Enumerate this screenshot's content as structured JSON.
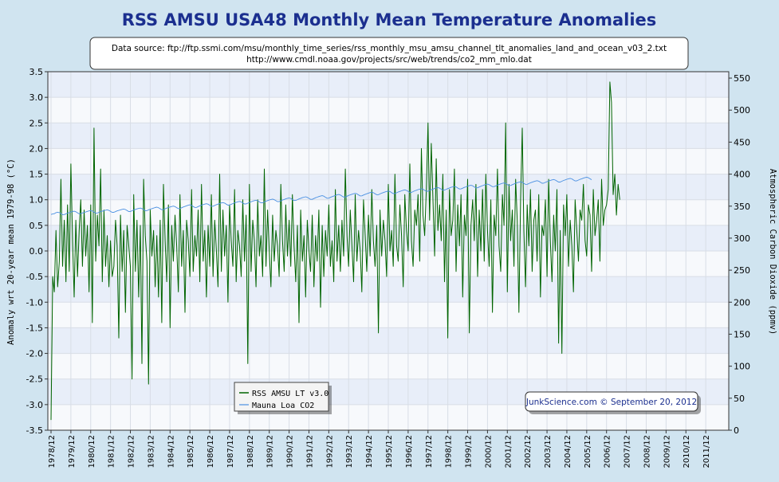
{
  "chart_data": {
    "type": "line",
    "title": "RSS AMSU USA48 Monthly Mean Temperature Anomalies",
    "source_lines": [
      "Data source: ftp://ftp.ssmi.com/msu/monthly_time_series/rss_monthly_msu_amsu_channel_tlt_anomalies_land_and_ocean_v03_2.txt",
      "http://www.cmdl.noaa.gov/projects/src/web/trends/co2_mm_mlo.dat"
    ],
    "ylabel": "Anomaly wrt 20-year mean 1979-98 (°C)",
    "y2label": "Atmospheric Carbon Dioxide (ppmv)",
    "ylim": [
      -3.5,
      3.5
    ],
    "y2lim": [
      0,
      560
    ],
    "yticks": [
      "3.5",
      "3.0",
      "2.5",
      "2.0",
      "1.5",
      "1.0",
      "0.5",
      "0.0",
      "-0.5",
      "-1.0",
      "-1.5",
      "-2.0",
      "-2.5",
      "-3.0",
      "-3.5"
    ],
    "y2ticks": [
      "550",
      "500",
      "450",
      "400",
      "350",
      "300",
      "250",
      "200",
      "150",
      "100",
      "50",
      "0"
    ],
    "xticks": [
      "1978/12",
      "1979/12",
      "1980/12",
      "1981/12",
      "1982/12",
      "1983/12",
      "1984/12",
      "1985/12",
      "1986/12",
      "1987/12",
      "1988/12",
      "1989/12",
      "1990/12",
      "1991/12",
      "1992/12",
      "1993/12",
      "1994/12",
      "1995/12",
      "1996/12",
      "1997/12",
      "1998/12",
      "1999/12",
      "2000/12",
      "2001/12",
      "2002/12",
      "2003/12",
      "2004/12",
      "2005/12",
      "2006/12",
      "2007/12",
      "2008/12",
      "2009/12",
      "2010/12",
      "2011/12"
    ],
    "x_start": "1978/12",
    "legend_position": "bottom-left",
    "series": [
      {
        "name": "RSS AMSU LT v3.0",
        "axis": "left",
        "color": "#006400",
        "values": [
          -3.3,
          -0.5,
          -0.8,
          0.4,
          -0.7,
          -0.2,
          1.4,
          -0.3,
          0.6,
          -0.6,
          0.9,
          -0.4,
          1.7,
          0.2,
          -0.9,
          0.6,
          -0.5,
          0.4,
          1.0,
          -0.3,
          0.8,
          -0.1,
          0.5,
          -0.8,
          0.9,
          -1.4,
          2.4,
          -0.2,
          0.7,
          0.1,
          1.6,
          -0.6,
          0.8,
          -0.3,
          0.3,
          -0.7,
          0.2,
          -0.5,
          -0.3,
          0.6,
          0.1,
          -1.7,
          0.7,
          -0.4,
          0.4,
          -1.2,
          0.5,
          0.1,
          -0.3,
          -2.5,
          1.1,
          -0.4,
          0.6,
          -0.9,
          0.5,
          -2.2,
          1.4,
          0.3,
          -0.2,
          -2.6,
          0.8,
          -0.1,
          0.4,
          -0.7,
          0.3,
          -0.9,
          0.6,
          -1.4,
          1.3,
          0.2,
          -0.6,
          0.9,
          -1.5,
          0.5,
          -0.2,
          0.7,
          0.1,
          -0.8,
          1.1,
          -0.3,
          0.4,
          -1.2,
          0.6,
          0.2,
          -0.5,
          1.2,
          -0.4,
          0.3,
          -0.1,
          0.8,
          -0.6,
          1.3,
          -0.2,
          0.4,
          -0.9,
          0.5,
          -0.3,
          1.1,
          -0.5,
          0.6,
          0.0,
          -0.7,
          1.5,
          -0.4,
          0.8,
          -0.1,
          0.5,
          -1.0,
          0.9,
          0.2,
          -0.3,
          1.2,
          -0.6,
          0.4,
          0.1,
          -0.5,
          1.0,
          -0.2,
          0.7,
          -2.2,
          1.3,
          -0.4,
          0.6,
          0.2,
          -0.7,
          1.0,
          -0.1,
          0.3,
          -0.5,
          1.6,
          -0.3,
          0.8,
          0.0,
          -0.7,
          0.7,
          -0.2,
          0.4,
          0.1,
          -0.5,
          1.3,
          0.2,
          -0.4,
          0.9,
          -0.1,
          0.6,
          -0.3,
          1.1,
          0.1,
          -0.6,
          0.5,
          -1.4,
          0.8,
          -0.2,
          0.3,
          -0.9,
          0.6,
          0.0,
          -0.4,
          0.7,
          -0.7,
          0.3,
          -0.2,
          0.8,
          -1.1,
          0.5,
          -0.5,
          0.4,
          -0.1,
          0.9,
          -0.3,
          0.2,
          -0.6,
          1.2,
          -0.2,
          0.5,
          -0.4,
          0.6,
          -0.1,
          1.6,
          0.3,
          -0.3,
          0.8,
          0.1,
          -0.6,
          1.1,
          -0.2,
          0.4,
          0.0,
          -0.8,
          1.0,
          0.3,
          -0.4,
          0.7,
          -0.1,
          1.2,
          0.2,
          -0.3,
          0.5,
          -1.6,
          0.8,
          -0.1,
          0.6,
          0.2,
          -0.5,
          1.3,
          0.0,
          0.4,
          -0.3,
          1.5,
          0.1,
          -0.2,
          0.9,
          0.3,
          -0.7,
          1.1,
          0.4,
          0.0,
          1.7,
          0.2,
          -0.3,
          0.8,
          0.5,
          1.1,
          -0.2,
          2.0,
          0.7,
          0.3,
          1.2,
          2.5,
          0.6,
          2.1,
          1.0,
          -0.1,
          1.8,
          0.4,
          0.9,
          0.2,
          1.5,
          -0.6,
          0.8,
          -1.7,
          1.2,
          0.3,
          0.6,
          1.6,
          -0.4,
          0.9,
          0.1,
          1.1,
          -0.9,
          0.7,
          0.3,
          1.4,
          -1.6,
          0.5,
          1.0,
          0.2,
          1.3,
          -0.5,
          0.8,
          0.0,
          1.2,
          -0.2,
          1.5,
          0.4,
          -0.3,
          1.0,
          -1.2,
          0.7,
          0.3,
          1.6,
          0.1,
          -0.4,
          1.1,
          0.5,
          2.5,
          -0.8,
          1.3,
          0.2,
          0.8,
          -0.3,
          1.4,
          0.6,
          -1.2,
          1.0,
          2.4,
          0.4,
          -0.7,
          0.9,
          0.1,
          1.2,
          -0.4,
          0.6,
          0.8,
          -0.2,
          1.1,
          -0.9,
          0.5,
          0.3,
          1.0,
          -0.5,
          1.4,
          0.2,
          -0.6,
          0.7,
          0.0,
          1.2,
          -1.8,
          0.4,
          -2.0,
          0.9,
          0.3,
          1.1,
          -0.3,
          0.6,
          0.1,
          -0.8,
          1.0,
          0.4,
          -0.2,
          0.8,
          0.6,
          1.3,
          0.2,
          -0.1,
          0.9,
          0.7,
          -0.4,
          1.2,
          0.3,
          0.6,
          1.0,
          -0.2,
          1.4,
          0.5,
          0.8,
          0.9,
          1.2,
          3.3,
          2.9,
          1.1,
          1.5,
          0.7,
          1.3,
          1.0
        ]
      },
      {
        "name": "Mauna Loa CO2",
        "axis": "right",
        "color": "#4a90e2",
        "values": [
          337,
          337.8,
          338.2,
          339.8,
          340.5,
          339.9,
          338.6,
          336.8,
          336.9,
          338.0,
          339.2,
          339.8,
          340.9,
          341.6,
          342.1,
          341.2,
          339.6,
          338.1,
          338.2,
          339.3,
          340.2,
          340.9,
          341.8,
          342.6,
          343.1,
          342.3,
          340.6,
          339.2,
          339.2,
          340.4,
          341.5,
          342.2,
          342.9,
          343.7,
          344.2,
          343.4,
          341.8,
          340.2,
          340.3,
          341.5,
          342.6,
          343.3,
          344.2,
          345.0,
          345.5,
          344.7,
          343.1,
          341.6,
          341.7,
          342.9,
          344.0,
          344.8,
          345.7,
          346.4,
          347.0,
          346.2,
          344.5,
          343.0,
          343.0,
          344.2,
          345.3,
          346.1,
          347.0,
          347.8,
          348.4,
          347.6,
          345.9,
          344.5,
          344.6,
          345.8,
          347.0,
          347.8,
          348.7,
          349.5,
          350.1,
          349.3,
          347.6,
          346.1,
          346.3,
          347.5,
          348.7,
          349.6,
          350.6,
          351.4,
          352.0,
          351.2,
          349.5,
          348.0,
          348.1,
          349.3,
          350.5,
          351.4,
          352.4,
          353.2,
          353.8,
          353.0,
          351.3,
          349.8,
          349.9,
          351.1,
          352.3,
          353.2,
          354.2,
          355.0,
          355.6,
          354.8,
          353.1,
          351.6,
          351.7,
          352.9,
          354.1,
          355.0,
          356.0,
          356.8,
          357.4,
          356.6,
          354.9,
          353.4,
          353.5,
          354.7,
          355.9,
          356.8,
          357.8,
          358.6,
          359.2,
          358.4,
          356.7,
          355.2,
          355.3,
          356.5,
          357.7,
          358.6,
          359.6,
          360.4,
          361.0,
          360.2,
          358.5,
          357.0,
          357.1,
          358.3,
          359.5,
          360.4,
          361.4,
          362.2,
          362.8,
          362.0,
          360.3,
          358.8,
          358.9,
          360.1,
          361.3,
          362.2,
          363.2,
          364.0,
          364.6,
          363.8,
          362.1,
          360.6,
          360.7,
          361.9,
          363.1,
          364.0,
          365.0,
          365.8,
          366.4,
          365.6,
          363.9,
          362.4,
          362.5,
          363.7,
          364.9,
          365.8,
          366.8,
          367.6,
          368.2,
          367.4,
          365.7,
          364.2,
          364.3,
          365.5,
          366.7,
          367.6,
          368.6,
          369.4,
          370.0,
          369.2,
          367.5,
          366.0,
          366.1,
          367.3,
          368.5,
          369.4,
          370.4,
          371.2,
          371.8,
          371.0,
          369.3,
          367.8,
          367.9,
          369.1,
          370.3,
          371.2,
          372.2,
          373.0,
          373.6,
          372.8,
          371.1,
          369.6,
          369.7,
          370.9,
          372.1,
          373.0,
          374.0,
          374.8,
          375.4,
          374.6,
          372.9,
          371.4,
          371.5,
          372.7,
          373.9,
          374.8,
          375.8,
          376.6,
          377.2,
          376.4,
          374.7,
          373.2,
          373.3,
          374.5,
          375.7,
          376.6,
          377.6,
          378.4,
          379.0,
          378.2,
          376.5,
          375.0,
          375.1,
          376.3,
          377.5,
          378.4,
          379.4,
          380.2,
          380.8,
          380.0,
          378.3,
          376.8,
          376.9,
          378.1,
          379.3,
          380.2,
          381.2,
          382.0,
          382.6,
          381.8,
          380.1,
          378.6,
          378.7,
          379.9,
          381.1,
          382.0,
          383.0,
          383.8,
          384.4,
          383.6,
          381.9,
          380.4,
          380.5,
          381.7,
          382.9,
          383.8,
          384.8,
          385.6,
          386.2,
          385.4,
          383.7,
          382.2,
          382.3,
          383.5,
          384.7,
          385.6,
          386.6,
          387.4,
          388.0,
          387.2,
          385.5,
          384.0,
          384.1,
          385.3,
          386.5,
          387.4,
          388.4,
          389.2,
          389.8,
          389.0,
          387.3,
          385.8,
          385.9,
          387.1,
          388.3,
          389.2,
          390.2,
          391.0,
          391.6,
          390.8,
          389.1,
          387.6,
          387.7,
          388.9,
          390.1,
          391.0,
          392.0,
          392.8,
          393.4,
          392.6,
          390.9,
          389.4,
          389.5,
          390.7,
          391.9,
          392.8,
          393.8,
          394.6,
          395.2,
          394.4,
          392.7,
          391.2
        ]
      }
    ]
  },
  "credit": "JunkScience.com © September 20, 2012"
}
